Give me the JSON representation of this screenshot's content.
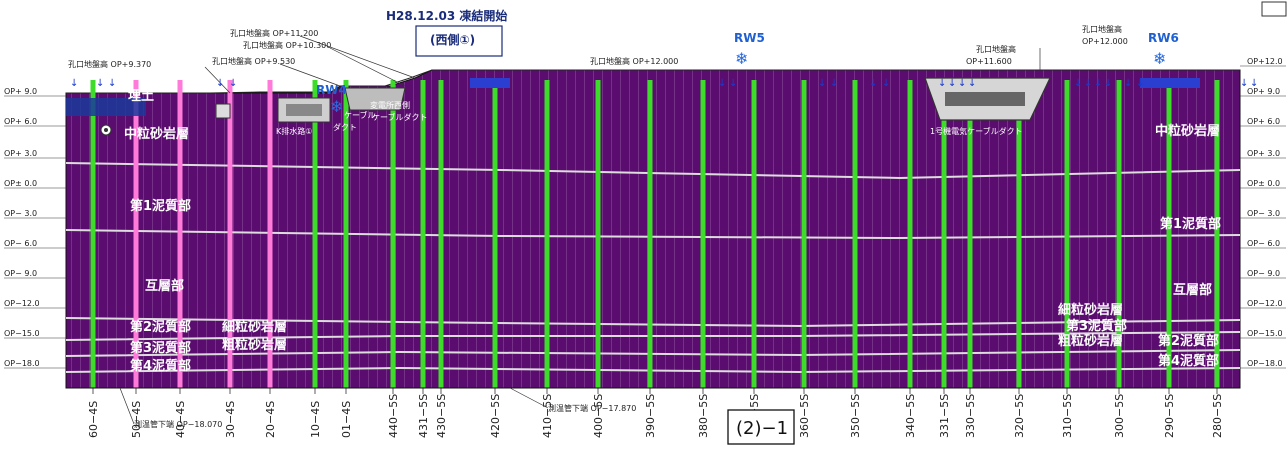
{
  "header": {
    "freeze_start": "H28.12.03 凍結開始",
    "west_label": "(西側①)"
  },
  "layers": {
    "fill": "埋土",
    "medium_sandstone": "中粒砂岩層",
    "mud1": "第1泥質部",
    "alternating": "互層部",
    "mud2": "第2泥質部",
    "fine_sandstone": "細粒砂岩層",
    "mud3": "第3泥質部",
    "coarse_sandstone": "粗粒砂岩層",
    "mud4": "第4泥質部"
  },
  "structures": {
    "k_drain": "K排水路①",
    "cable": "ケーブル",
    "duct": "ダクト",
    "substation_west": "変電所西側",
    "cable_duct": "ケーブルダクト",
    "electric_duct": "1号機電気ケーブルダクト"
  },
  "hole_elevations": [
    "孔口地盤高 OP+9.370",
    "孔口地盤高 OP+9.530",
    "孔口地盤高 OP+10.300",
    "孔口地盤高 OP+11.200",
    "孔口地盤高 OP+12.000",
    "孔口地盤高",
    "OP+11.600",
    "OP+12.000"
  ],
  "rw_labels": [
    "RW4",
    "RW5",
    "RW6"
  ],
  "elevations": {
    "left": [
      "OP+ 9.0",
      "OP+ 6.0",
      "OP+ 3.0",
      "OP± 0.0",
      "OP− 3.0",
      "OP− 6.0",
      "OP− 9.0",
      "OP−12.0",
      "OP−15.0",
      "OP−18.0"
    ],
    "right": [
      "OP+12.0",
      "OP+ 9.0",
      "OP+ 6.0",
      "OP+ 3.0",
      "OP± 0.0",
      "OP− 3.0",
      "OP− 6.0",
      "OP− 9.0",
      "OP−12.0",
      "OP−15.0",
      "OP−18.0"
    ]
  },
  "wells": [
    {
      "label": "60−4S",
      "color": "green"
    },
    {
      "label": "50−4S",
      "color": "pink"
    },
    {
      "label": "40−4S",
      "color": "pink"
    },
    {
      "label": "30−4S",
      "color": "pink"
    },
    {
      "label": "20−4S",
      "color": "pink"
    },
    {
      "label": "10−4S",
      "color": "green"
    },
    {
      "label": "01−4S",
      "color": "green"
    },
    {
      "label": "440−5S",
      "color": "green"
    },
    {
      "label": "431−5S",
      "color": "green"
    },
    {
      "label": "430−5S",
      "color": "green"
    },
    {
      "label": "420−5S",
      "color": "green"
    },
    {
      "label": "410−5S",
      "color": "green"
    },
    {
      "label": "400−5S",
      "color": "green"
    },
    {
      "label": "390−5S",
      "color": "green"
    },
    {
      "label": "380−5S",
      "color": "green"
    },
    {
      "label": "370−5S",
      "color": "green"
    },
    {
      "label": "360−5S",
      "color": "green"
    },
    {
      "label": "350−5S",
      "color": "green"
    },
    {
      "label": "340−5S",
      "color": "green"
    },
    {
      "label": "331−5S",
      "color": "green"
    },
    {
      "label": "330−5S",
      "color": "green"
    },
    {
      "label": "320−5S",
      "color": "green"
    },
    {
      "label": "310−5S",
      "color": "green"
    },
    {
      "label": "300−5S",
      "color": "green"
    },
    {
      "label": "290−5S",
      "color": "green"
    },
    {
      "label": "280−5S",
      "color": "green"
    }
  ],
  "bottom_notes": [
    "測温管下端 OP−18.070",
    "測温管下端 OP−17.870"
  ],
  "figure_label": "(2)−1",
  "colors": {
    "ground": "#5a0d6e",
    "green_pipe": "#3ddc2a",
    "pink_pipe": "#ff7ad9",
    "arrow": "#1a3acf"
  }
}
